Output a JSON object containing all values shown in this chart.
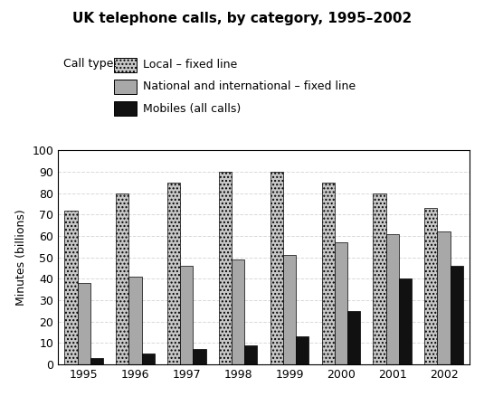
{
  "title": "UK telephone calls, by category, 1995–2002",
  "legend_title": "Call type:",
  "ylabel": "Minutes (billions)",
  "years": [
    1995,
    1996,
    1997,
    1998,
    1999,
    2000,
    2001,
    2002
  ],
  "local_fixed": [
    72,
    80,
    85,
    90,
    90,
    85,
    80,
    73
  ],
  "national_fixed": [
    38,
    41,
    46,
    49,
    51,
    57,
    61,
    62
  ],
  "mobiles": [
    3,
    5,
    7,
    9,
    13,
    25,
    40,
    46
  ],
  "ylim": [
    0,
    100
  ],
  "yticks": [
    0,
    10,
    20,
    30,
    40,
    50,
    60,
    70,
    80,
    90,
    100
  ],
  "legend_labels": [
    "Local – fixed line",
    "National and international – fixed line",
    "Mobiles (all calls)"
  ],
  "bar_width": 0.25,
  "local_color": "#c8c8c8",
  "local_hatch": "....",
  "national_color": "#a8a8a8",
  "national_hatch": "",
  "mobiles_color": "#111111",
  "mobiles_hatch": "",
  "background_color": "#ffffff",
  "grid_color": "#d0d0d0"
}
